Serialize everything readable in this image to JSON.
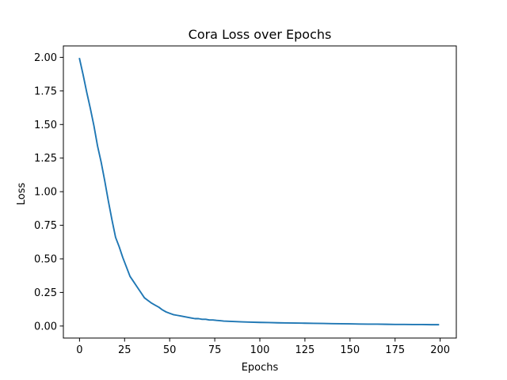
{
  "chart_data": {
    "type": "line",
    "title": "Cora Loss over Epochs",
    "xlabel": "Epochs",
    "ylabel": "Loss",
    "xlim": [
      -8.95,
      208.95
    ],
    "ylim": [
      -0.0894,
      2.085
    ],
    "xticks": [
      0,
      25,
      50,
      75,
      100,
      125,
      150,
      175,
      200
    ],
    "xtick_labels": [
      "0",
      "25",
      "50",
      "75",
      "100",
      "125",
      "150",
      "175",
      "200"
    ],
    "yticks": [
      0.0,
      0.25,
      0.5,
      0.75,
      1.0,
      1.25,
      1.5,
      1.75,
      2.0
    ],
    "ytick_labels": [
      "0.00",
      "0.25",
      "0.50",
      "0.75",
      "1.00",
      "1.25",
      "1.50",
      "1.75",
      "2.00"
    ],
    "grid": false,
    "series": [
      {
        "color": "#1f77b4",
        "x": [
          0,
          2,
          4,
          6,
          8,
          10,
          12,
          14,
          16,
          18,
          20,
          22,
          24,
          26,
          28,
          30,
          32,
          34,
          36,
          38,
          40,
          42,
          44,
          46,
          48,
          50,
          52,
          54,
          56,
          58,
          60,
          62,
          64,
          66,
          68,
          70,
          72,
          74,
          76,
          78,
          80,
          85,
          90,
          95,
          100,
          105,
          110,
          115,
          120,
          125,
          130,
          135,
          140,
          145,
          150,
          155,
          160,
          165,
          170,
          175,
          180,
          185,
          190,
          195,
          199
        ],
        "y": [
          1.99,
          1.87,
          1.74,
          1.62,
          1.49,
          1.34,
          1.22,
          1.08,
          0.93,
          0.79,
          0.66,
          0.59,
          0.51,
          0.44,
          0.37,
          0.33,
          0.29,
          0.25,
          0.21,
          0.19,
          0.17,
          0.155,
          0.14,
          0.12,
          0.105,
          0.095,
          0.085,
          0.08,
          0.075,
          0.07,
          0.065,
          0.06,
          0.055,
          0.055,
          0.05,
          0.05,
          0.045,
          0.045,
          0.042,
          0.04,
          0.037,
          0.034,
          0.031,
          0.029,
          0.027,
          0.026,
          0.024,
          0.023,
          0.022,
          0.021,
          0.02,
          0.019,
          0.018,
          0.017,
          0.016,
          0.015,
          0.014,
          0.014,
          0.013,
          0.012,
          0.012,
          0.011,
          0.011,
          0.01,
          0.01
        ]
      }
    ]
  }
}
